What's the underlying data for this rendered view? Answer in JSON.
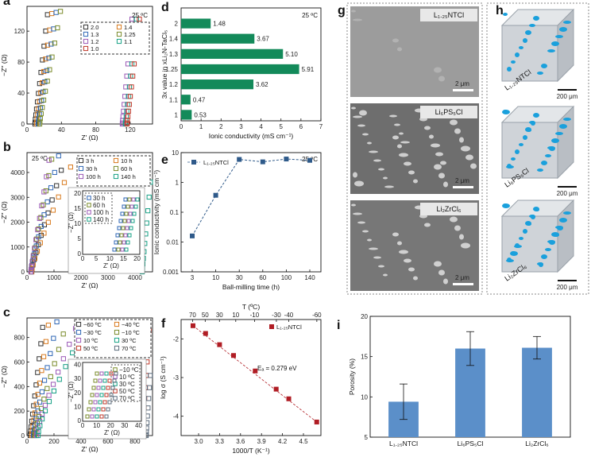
{
  "colors": {
    "green": "#138a5a",
    "blue": "#2f5a8a",
    "red": "#b01d24",
    "bar": "#5b8fc9",
    "tomo": "#1aa0dc"
  },
  "panels": {
    "a": {
      "letter": "a",
      "temp": "25 ºC",
      "ylabel": "−Z'' (Ω)",
      "xlabel": "Z' (Ω)",
      "yticks": [
        "0",
        "40",
        "80",
        "120"
      ],
      "xticks": [
        "0",
        "40",
        "80",
        "120"
      ],
      "legend": [
        "2.0",
        "1.4",
        "1.3",
        "1.25",
        "1.2",
        "1.1",
        "1.0"
      ]
    },
    "b": {
      "letter": "b",
      "temp": "25 ºC",
      "ylabel": "−Z'' (Ω)",
      "xlabel": "Z' (Ω)",
      "yticks": [
        "0",
        "1000",
        "2000",
        "3000",
        "4000"
      ],
      "xticks": [
        "0",
        "1000",
        "2000",
        "3000",
        "4000"
      ],
      "legend": [
        "3 h",
        "10 h",
        "30 h",
        "60 h",
        "100 h",
        "140 h"
      ],
      "inset": {
        "legend": [
          "30 h",
          "60 h",
          "100 h",
          "140 h"
        ],
        "yticks": [
          "0",
          "5",
          "10",
          "15",
          "20"
        ],
        "xticks": [
          "0",
          "5",
          "10",
          "15",
          "20"
        ],
        "xlabel": "Z' (Ω)",
        "ylabel": "−Z'' (Ω)"
      }
    },
    "c": {
      "letter": "c",
      "ylabel": "−Z'' (Ω)",
      "xlabel": "Z' (Ω)",
      "yticks": [
        "0",
        "200",
        "400",
        "600",
        "800"
      ],
      "xticks": [
        "0",
        "200",
        "400",
        "600",
        "800"
      ],
      "legend": [
        "−60 ºC",
        "−40 ºC",
        "−30 ºC",
        "−10 ºC",
        "10 ºC",
        "30 ºC",
        "50 ºC",
        "70 ºC"
      ],
      "inset": {
        "legend": [
          "−10 ºC",
          "10 ºC",
          "30 ºC",
          "50 ºC",
          "70 ºC"
        ],
        "yticks": [
          "0",
          "10",
          "20",
          "30",
          "40"
        ],
        "xticks": [
          "0",
          "10",
          "20",
          "30",
          "40"
        ],
        "xlabel": "Z' (Ω)",
        "ylabel": "−Z'' (Ω)"
      }
    },
    "d": {
      "letter": "d",
      "temp": "25 ºC"
    },
    "e": {
      "letter": "e",
      "temp": "25 ºC"
    },
    "f": {
      "letter": "f",
      "ea": "Eₐ = 0.279 eV"
    },
    "g": {
      "letter": "g",
      "images": [
        {
          "label": "L₁.₂₅NTCl",
          "scale": "2 μm"
        },
        {
          "label": "Li₆PS₅Cl",
          "scale": "2 μm"
        },
        {
          "label": "Li₂ZrCl₆",
          "scale": "2 μm"
        }
      ]
    },
    "h": {
      "letter": "h",
      "cubes": [
        {
          "label": "L₁.₂₅NTCl",
          "scale": "200 μm"
        },
        {
          "label": "Li₆PS₅Cl",
          "scale": "200 μm"
        },
        {
          "label": "Li₂ZrCl₆",
          "scale": "200 μm"
        }
      ]
    },
    "i": {
      "letter": "i"
    }
  },
  "chart_data": [
    {
      "panel": "d",
      "type": "bar",
      "orientation": "horizontal",
      "categories": [
        "2",
        "1.4",
        "1.3",
        "1.25",
        "1.2",
        "1.1",
        "1"
      ],
      "values": [
        1.48,
        3.67,
        5.1,
        5.91,
        3.62,
        0.47,
        0.53
      ],
      "value_labels": [
        "1.48",
        "3.67",
        "5.10",
        "5.91",
        "3.62",
        "0.47",
        "0.53"
      ],
      "xlabel": "Ionic conductivity (mS cm⁻¹)",
      "ylabel": "3x value in xLi₂N-TaCl₅",
      "xlim": [
        0,
        7
      ],
      "xticks": [
        "0",
        "1",
        "2",
        "3",
        "4",
        "5",
        "6",
        "7"
      ]
    },
    {
      "panel": "e",
      "type": "line",
      "categories": [
        "3",
        "10",
        "30",
        "60",
        "100",
        "140"
      ],
      "series": [
        {
          "name": "L₁.₂₅NTCl",
          "values": [
            0.016,
            0.37,
            5.91,
            4.9,
            6.1,
            5.5
          ]
        }
      ],
      "xlabel": "Ball-milling time (h)",
      "ylabel": "Ionic conductivity (mS cm⁻¹)",
      "yscale": "log",
      "ylim": [
        0.001,
        10
      ],
      "yticks": [
        "0.001",
        "0.01",
        "0.1",
        "1",
        "10"
      ]
    },
    {
      "panel": "f",
      "type": "line",
      "series": [
        {
          "name": "L₁.₂₅NTCl",
          "x": [
            2.92,
            3.1,
            3.3,
            3.5,
            3.81,
            4.11,
            4.29,
            4.69
          ],
          "y": [
            -1.66,
            -1.86,
            -2.15,
            -2.43,
            -2.83,
            -3.3,
            -3.55,
            -4.15
          ]
        }
      ],
      "xlabel": "1000/T (K⁻¹)",
      "ylabel": "log σ (S cm⁻¹)",
      "top_xlabel": "T (ºC)",
      "xlim": [
        2.75,
        4.75
      ],
      "ylim": [
        -4.5,
        -1.5
      ],
      "xticks": [
        "3.0",
        "3.3",
        "3.6",
        "3.9",
        "4.2",
        "4.5"
      ],
      "yticks": [
        "-2",
        "-3",
        "-4"
      ],
      "top_ticks": [
        "70",
        "50",
        "30",
        "10",
        "-10",
        "-30",
        "-40",
        "-60"
      ],
      "top_tick_values": [
        70,
        50,
        30,
        10,
        -10,
        -30,
        -40,
        -60
      ]
    },
    {
      "panel": "i",
      "type": "bar",
      "categories": [
        "L₁.₂₅NTCl",
        "Li₆PS₅Cl",
        "Li₂ZrCl₆"
      ],
      "values": [
        9.4,
        16.0,
        16.1
      ],
      "errors": [
        2.2,
        2.1,
        1.4
      ],
      "ylabel": "Porosity (%)",
      "ylim": [
        5,
        20
      ],
      "yticks": [
        "5",
        "10",
        "15",
        "20"
      ]
    }
  ]
}
